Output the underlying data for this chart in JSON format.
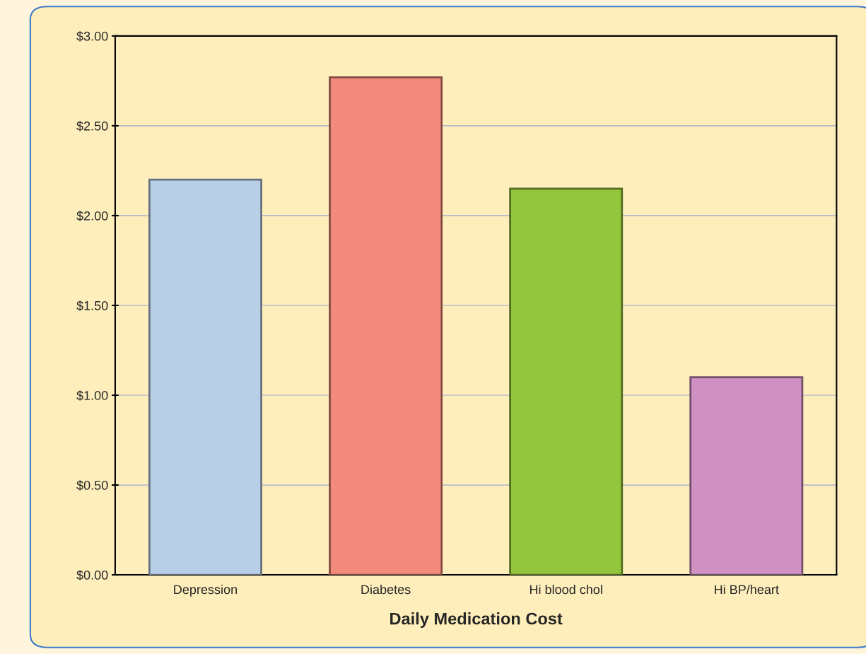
{
  "chart_data": {
    "type": "bar",
    "xlabel": "Daily Medication Cost",
    "categories": [
      "Depression",
      "Diabetes",
      "Hi blood chol",
      "Hi BP/heart"
    ],
    "values": [
      2.2,
      2.77,
      2.15,
      1.1
    ],
    "colors": [
      "#b9cfe8",
      "#f28b7d",
      "#93c63d",
      "#ce91c2"
    ],
    "ylim": [
      0,
      3
    ],
    "yticks": [
      {
        "value": 0,
        "label": "$0.00"
      },
      {
        "value": 0.5,
        "label": "$0.50"
      },
      {
        "value": 1,
        "label": "$1.00"
      },
      {
        "value": 1.5,
        "label": "$1.50"
      },
      {
        "value": 2,
        "label": "$2.00"
      },
      {
        "value": 2.5,
        "label": "$2.50"
      },
      {
        "value": 3,
        "label": "$3.00"
      }
    ],
    "grid": "y",
    "legend": false
  }
}
